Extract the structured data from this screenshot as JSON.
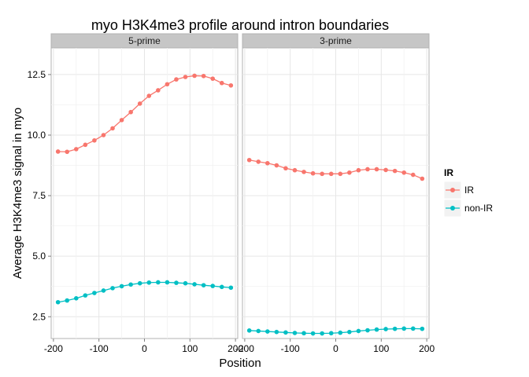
{
  "chart_data": {
    "type": "line",
    "title": "myo H3K4me3 profile around intron boundaries",
    "xlabel": "Position",
    "ylabel": "Average H3K4me3 signal in myo",
    "facets": [
      "5-prime",
      "3-prime"
    ],
    "x": [
      -190,
      -170,
      -150,
      -130,
      -110,
      -90,
      -70,
      -50,
      -30,
      -10,
      10,
      30,
      50,
      70,
      90,
      110,
      130,
      150,
      170,
      190
    ],
    "xlim": [
      -205,
      205
    ],
    "ylim": [
      1.6,
      13.6
    ],
    "xticks": [
      -200,
      -100,
      0,
      100,
      200
    ],
    "yticks": [
      2.5,
      5.0,
      7.5,
      10.0,
      12.5
    ],
    "xtick_labels": [
      "-200",
      "-100",
      "0",
      "100",
      "200"
    ],
    "ytick_labels": [
      "2.5",
      "5.0",
      "7.5",
      "10.0",
      "12.5"
    ],
    "legend": {
      "title": "IR",
      "position": "right",
      "entries": [
        {
          "label": "IR",
          "color": "#F8766D"
        },
        {
          "label": "non-IR",
          "color": "#00BFC4"
        }
      ]
    },
    "grid": true,
    "series": [
      {
        "name": "IR",
        "facet": "5-prime",
        "color": "#F8766D",
        "values": [
          9.32,
          9.31,
          9.42,
          9.6,
          9.78,
          10.0,
          10.28,
          10.62,
          10.95,
          11.3,
          11.62,
          11.85,
          12.1,
          12.3,
          12.4,
          12.45,
          12.44,
          12.33,
          12.15,
          12.05
        ]
      },
      {
        "name": "non-IR",
        "facet": "5-prime",
        "color": "#00BFC4",
        "values": [
          3.1,
          3.17,
          3.26,
          3.38,
          3.48,
          3.58,
          3.68,
          3.76,
          3.83,
          3.88,
          3.91,
          3.92,
          3.92,
          3.9,
          3.88,
          3.84,
          3.8,
          3.77,
          3.73,
          3.7
        ]
      },
      {
        "name": "IR",
        "facet": "3-prime",
        "color": "#F8766D",
        "values": [
          8.97,
          8.9,
          8.84,
          8.75,
          8.63,
          8.55,
          8.48,
          8.42,
          8.4,
          8.4,
          8.4,
          8.45,
          8.55,
          8.59,
          8.59,
          8.56,
          8.52,
          8.45,
          8.36,
          8.2
        ]
      },
      {
        "name": "non-IR",
        "facet": "3-prime",
        "color": "#00BFC4",
        "values": [
          1.93,
          1.91,
          1.89,
          1.87,
          1.85,
          1.83,
          1.82,
          1.81,
          1.81,
          1.82,
          1.84,
          1.87,
          1.91,
          1.94,
          1.97,
          1.99,
          2.0,
          2.01,
          2.01,
          2.0
        ]
      }
    ]
  }
}
